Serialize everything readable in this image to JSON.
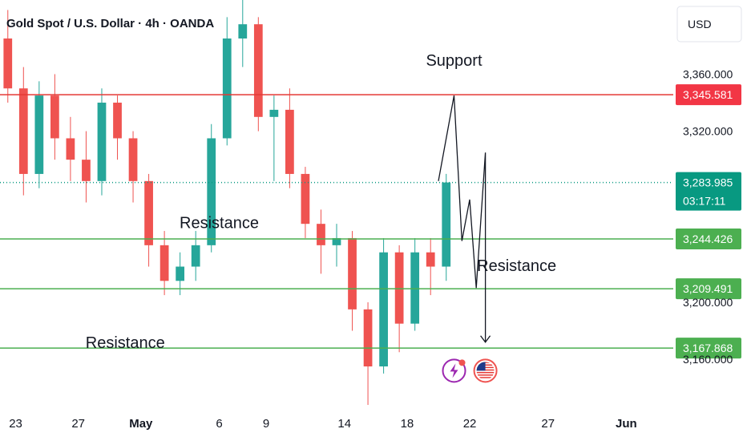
{
  "title": "Gold Spot / U.S. Dollar · 4h · OANDA",
  "currency": "USD",
  "colors": {
    "up": "#26a69a",
    "down": "#ef5350",
    "resistance_red": "#e53935",
    "support_green": "#4caf50",
    "current_price": "#089981",
    "projection": "#131722",
    "text": "#131722"
  },
  "chart_data": {
    "type": "candlestick",
    "y_axis": {
      "range": [
        3128,
        3412
      ],
      "tick_labels": [
        "3,360.000",
        "3,320.000",
        "3,200.000",
        "3,160.000"
      ],
      "tick_values": [
        3360,
        3320,
        3200,
        3160
      ],
      "side": "right"
    },
    "x_axis": {
      "range": [
        "2025-04-22",
        "2025-06-04"
      ],
      "tick_labels": [
        "23",
        "27",
        "May",
        "6",
        "9",
        "14",
        "18",
        "22",
        "27",
        "Jun"
      ],
      "tick_dates": [
        "2025-04-23",
        "2025-04-27",
        "2025-05-01",
        "2025-05-06",
        "2025-05-09",
        "2025-05-14",
        "2025-05-18",
        "2025-05-22",
        "2025-05-27",
        "2025-06-01"
      ]
    },
    "candles": [
      [
        "2025-04-22",
        3385,
        3405,
        3340,
        3350
      ],
      [
        "2025-04-23",
        3350,
        3365,
        3275,
        3290
      ],
      [
        "2025-04-24",
        3290,
        3355,
        3280,
        3345
      ],
      [
        "2025-04-25",
        3345,
        3360,
        3300,
        3315
      ],
      [
        "2025-04-26",
        3315,
        3330,
        3285,
        3300
      ],
      [
        "2025-04-27",
        3300,
        3320,
        3270,
        3285
      ],
      [
        "2025-04-28",
        3285,
        3350,
        3275,
        3340
      ],
      [
        "2025-04-29",
        3340,
        3345,
        3300,
        3315
      ],
      [
        "2025-04-30",
        3315,
        3320,
        3270,
        3285
      ],
      [
        "2025-05-01",
        3285,
        3290,
        3225,
        3240
      ],
      [
        "2025-05-02",
        3240,
        3250,
        3205,
        3215
      ],
      [
        "2025-05-03",
        3215,
        3235,
        3205,
        3225
      ],
      [
        "2025-05-04",
        3225,
        3250,
        3215,
        3240
      ],
      [
        "2025-05-05",
        3240,
        3325,
        3235,
        3315
      ],
      [
        "2025-05-06",
        3315,
        3400,
        3310,
        3385
      ],
      [
        "2025-05-07",
        3385,
        3412,
        3365,
        3395
      ],
      [
        "2025-05-08",
        3395,
        3400,
        3320,
        3330
      ],
      [
        "2025-05-09",
        3330,
        3345,
        3285,
        3335
      ],
      [
        "2025-05-10",
        3335,
        3350,
        3280,
        3290
      ],
      [
        "2025-05-11",
        3290,
        3295,
        3245,
        3255
      ],
      [
        "2025-05-12",
        3255,
        3265,
        3220,
        3240
      ],
      [
        "2025-05-13",
        3240,
        3255,
        3225,
        3245
      ],
      [
        "2025-05-14",
        3245,
        3250,
        3180,
        3195
      ],
      [
        "2025-05-15",
        3195,
        3200,
        3128,
        3155
      ],
      [
        "2025-05-16",
        3155,
        3245,
        3150,
        3235
      ],
      [
        "2025-05-17",
        3235,
        3240,
        3165,
        3185
      ],
      [
        "2025-05-18",
        3185,
        3245,
        3180,
        3235
      ],
      [
        "2025-05-19",
        3235,
        3245,
        3205,
        3225
      ],
      [
        "2025-05-20",
        3225,
        3290,
        3215,
        3284
      ]
    ],
    "horizontal_levels": [
      {
        "price": 3345.581,
        "label": "3,345.581",
        "role": "resistance-red"
      },
      {
        "price": 3283.985,
        "label": "3,283.985",
        "role": "current-price",
        "countdown": "03:17:11"
      },
      {
        "price": 3244.426,
        "label": "3,244.426",
        "role": "green"
      },
      {
        "price": 3209.491,
        "label": "3,209.491",
        "role": "green"
      },
      {
        "price": 3167.868,
        "label": "3,167.868",
        "role": "green"
      }
    ],
    "annotations": [
      {
        "text": "Support",
        "date": "2025-05-21",
        "price": 3366
      },
      {
        "text": "Resistance",
        "date": "2025-05-06",
        "price": 3252
      },
      {
        "text": "Resistance",
        "date": "2025-05-25",
        "price": 3222
      },
      {
        "text": "Resistance",
        "date": "2025-04-30",
        "price": 3168
      }
    ],
    "projection_path": [
      [
        "2025-05-20",
        3285
      ],
      [
        "2025-05-21",
        3345
      ],
      [
        "2025-05-21T12:00",
        3243
      ],
      [
        "2025-05-22",
        3272
      ],
      [
        "2025-05-22T10:00",
        3210
      ],
      [
        "2025-05-23",
        3305
      ],
      [
        "2025-05-23T00:00",
        3172
      ]
    ],
    "event_icons": [
      {
        "name": "lightning-event-icon",
        "date": "2025-05-21",
        "price": 3152
      },
      {
        "name": "us-flag-icon",
        "date": "2025-05-23",
        "price": 3152
      }
    ]
  }
}
